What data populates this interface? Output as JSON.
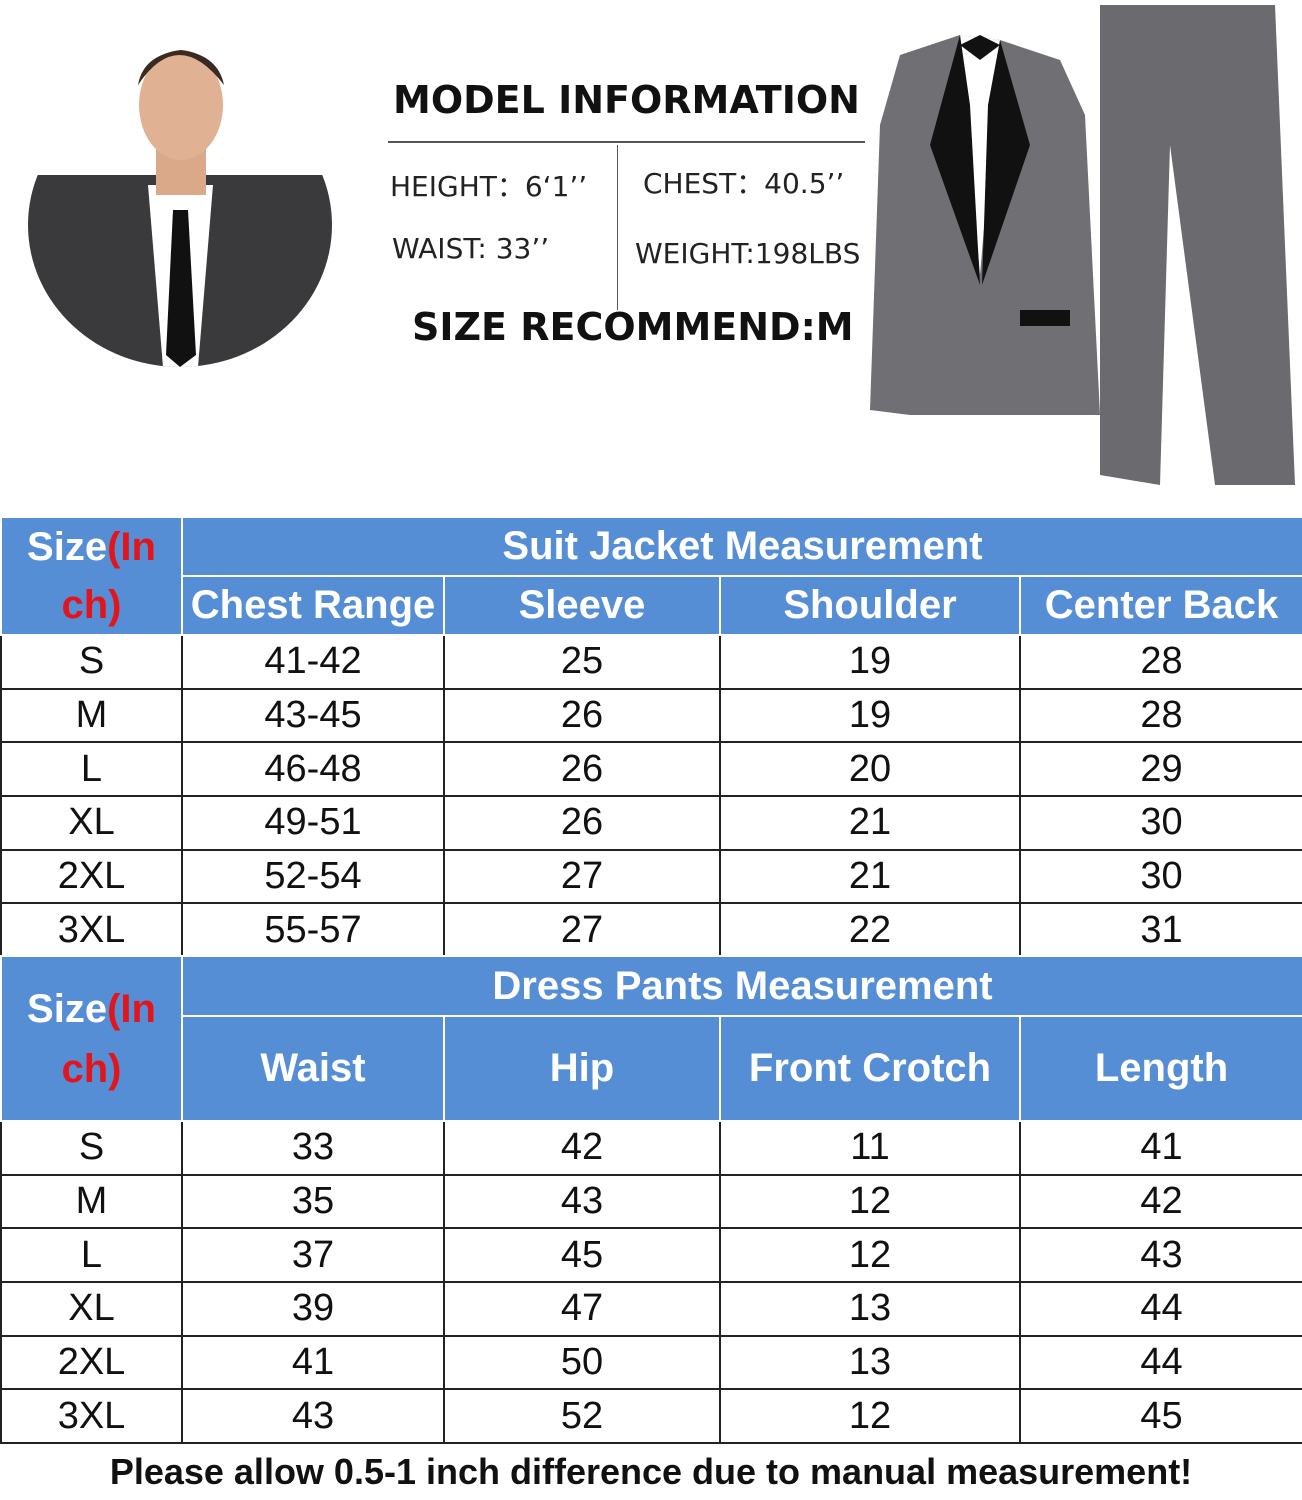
{
  "model": {
    "title": "MODEL INFORMATION",
    "height": "HEIGHT：6‘1’’",
    "chest": "CHEST：40.5’’",
    "waist": "WAIST: 33’’",
    "weight": "WEIGHT:198LBS",
    "recommend": "SIZE RECOMMEND:M"
  },
  "jacket": {
    "size_label_a": "Size",
    "size_label_b": "(In",
    "size_label_c": "ch)",
    "title": "Suit Jacket Measurement",
    "columns": [
      "Chest Range",
      "Sleeve",
      "Shoulder",
      "Center Back"
    ],
    "rows": [
      [
        "S",
        "41-42",
        "25",
        "19",
        "28"
      ],
      [
        "M",
        "43-45",
        "26",
        "19",
        "28"
      ],
      [
        "L",
        "46-48",
        "26",
        "20",
        "29"
      ],
      [
        "XL",
        "49-51",
        "26",
        "21",
        "30"
      ],
      [
        "2XL",
        "52-54",
        "27",
        "21",
        "30"
      ],
      [
        "3XL",
        "55-57",
        "27",
        "22",
        "31"
      ]
    ]
  },
  "pants": {
    "size_label_a": "Size",
    "size_label_b": "(In",
    "size_label_c": "ch)",
    "title": "Dress Pants Measurement",
    "columns": [
      "Waist",
      "Hip",
      "Front Crotch",
      "Length"
    ],
    "rows": [
      [
        "S",
        "33",
        "42",
        "11",
        "41"
      ],
      [
        "M",
        "35",
        "43",
        "12",
        "42"
      ],
      [
        "L",
        "37",
        "45",
        "12",
        "43"
      ],
      [
        "XL",
        "39",
        "47",
        "13",
        "44"
      ],
      [
        "2XL",
        "41",
        "50",
        "13",
        "44"
      ],
      [
        "3XL",
        "43",
        "52",
        "12",
        "45"
      ]
    ]
  },
  "footer": "Please allow 0.5-1 inch difference due to manual measurement!",
  "colors": {
    "header": "#568ed6",
    "accent": "#e4141b"
  }
}
